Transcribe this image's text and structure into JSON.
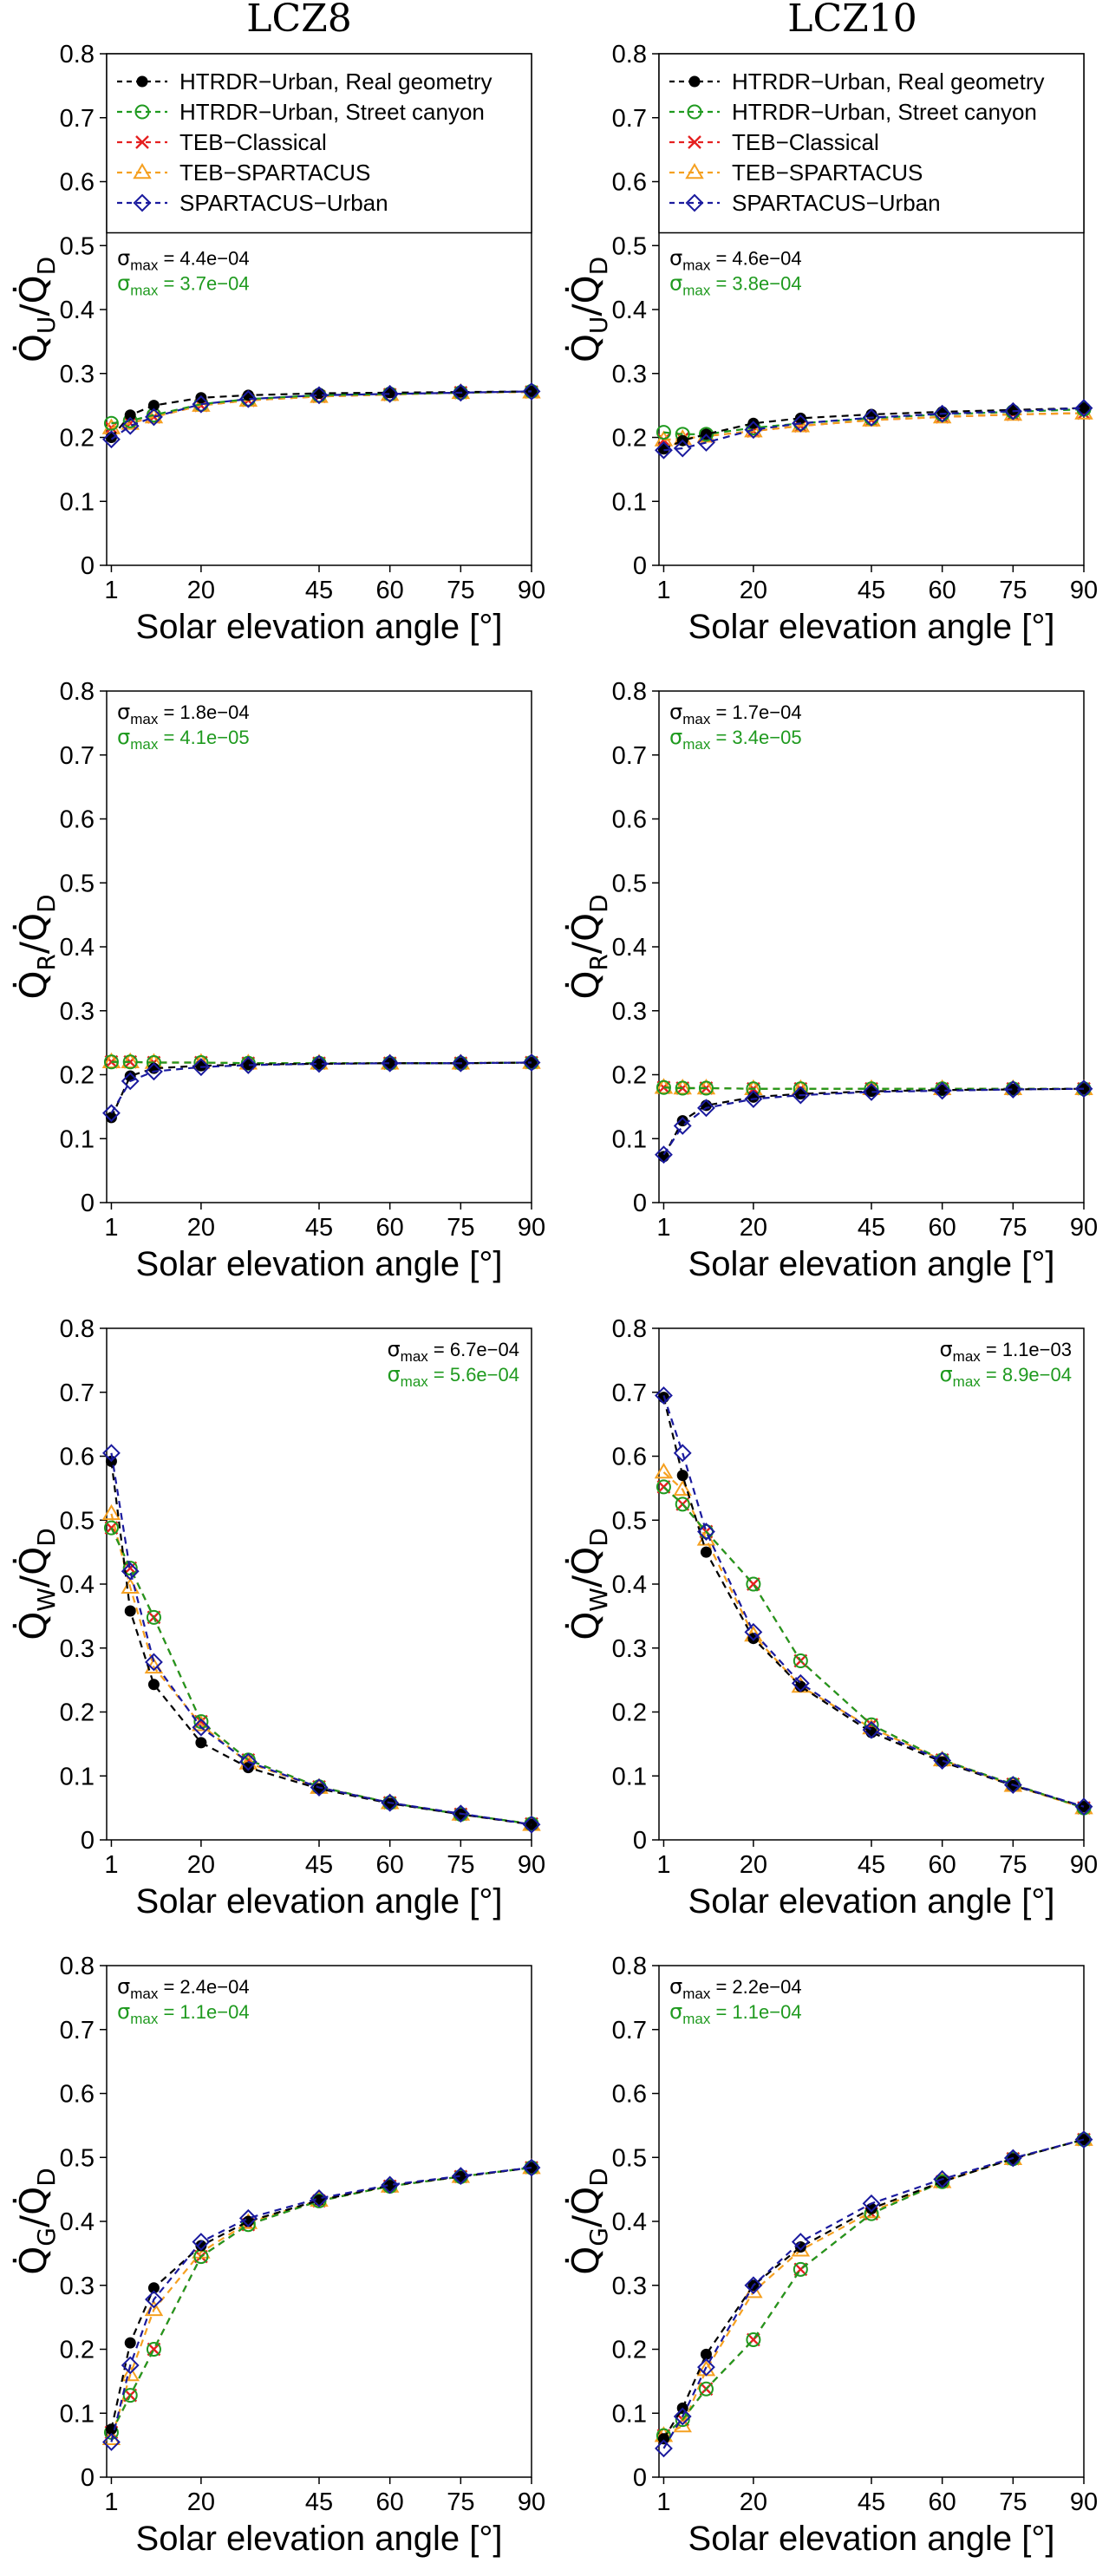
{
  "columns": [
    "LCZ8",
    "LCZ10"
  ],
  "colors": {
    "HTRDR-Urban, Real geometry": "#000000",
    "HTRDR-Urban, Street canyon": "#1f9a1f",
    "TEB-Classical": "#e52020",
    "TEB-SPARTACUS": "#f5a020",
    "SPARTACUS-Urban": "#1a1a9e",
    "sigma_black": "#000000",
    "sigma_green": "#1f9a1f"
  },
  "legend": {
    "entries": [
      {
        "label": "HTRDR−Urban, Real geometry",
        "marker": "dot",
        "color": "#000000"
      },
      {
        "label": "HTRDR−Urban, Street canyon",
        "marker": "circle",
        "color": "#1f9a1f"
      },
      {
        "label": "TEB−Classical",
        "marker": "cross",
        "color": "#e52020"
      },
      {
        "label": "TEB−SPARTACUS",
        "marker": "triangle",
        "color": "#f5a020"
      },
      {
        "label": "SPARTACUS−Urban",
        "marker": "diamond",
        "color": "#1a1a9e"
      }
    ]
  },
  "chart_data": [
    {
      "type": "line",
      "column": "LCZ8",
      "row": 0,
      "title": "LCZ8",
      "xlabel": "Solar elevation angle [°]",
      "ylabel_main": "Q",
      "ylabel_sub_num": "U",
      "ylabel_sub_den": "D",
      "xlim": [
        0,
        90
      ],
      "ylim": [
        0,
        0.8
      ],
      "xticks": [
        1,
        20,
        45,
        60,
        75,
        90
      ],
      "yticks": [
        0,
        0.1,
        0.2,
        0.3,
        0.4,
        0.5,
        0.6,
        0.7,
        0.8
      ],
      "sigma": [
        {
          "prefix": "σ",
          "sub": "max",
          "text": " = 4.4e−04",
          "color": "#000000"
        },
        {
          "prefix": "σ",
          "sub": "max",
          "text": " = 3.7e−04",
          "color": "#1f9a1f"
        }
      ],
      "sigma_position": "top-left",
      "x": [
        1,
        5,
        10,
        20,
        30,
        45,
        60,
        75,
        90
      ],
      "series": [
        {
          "name": "HTRDR-Urban, Real geometry",
          "values": [
            0.2,
            0.235,
            0.25,
            0.262,
            0.266,
            0.269,
            0.27,
            0.271,
            0.272
          ]
        },
        {
          "name": "HTRDR-Urban, Street canyon",
          "values": [
            0.222,
            0.226,
            0.235,
            0.252,
            0.26,
            0.266,
            0.268,
            0.27,
            0.272
          ]
        },
        {
          "name": "TEB-Classical",
          "values": [
            0.215,
            0.222,
            0.232,
            0.25,
            0.258,
            0.264,
            0.267,
            0.27,
            0.271
          ]
        },
        {
          "name": "TEB-SPARTACUS",
          "values": [
            0.215,
            0.222,
            0.232,
            0.25,
            0.258,
            0.264,
            0.267,
            0.27,
            0.271
          ]
        },
        {
          "name": "SPARTACUS-Urban",
          "values": [
            0.197,
            0.218,
            0.232,
            0.252,
            0.26,
            0.266,
            0.268,
            0.27,
            0.272
          ]
        }
      ]
    },
    {
      "type": "line",
      "column": "LCZ10",
      "row": 0,
      "title": "LCZ10",
      "xlabel": "Solar elevation angle [°]",
      "ylabel_main": "Q",
      "ylabel_sub_num": "U",
      "ylabel_sub_den": "D",
      "xlim": [
        0,
        90
      ],
      "ylim": [
        0,
        0.8
      ],
      "xticks": [
        1,
        20,
        45,
        60,
        75,
        90
      ],
      "yticks": [
        0,
        0.1,
        0.2,
        0.3,
        0.4,
        0.5,
        0.6,
        0.7,
        0.8
      ],
      "sigma": [
        {
          "prefix": "σ",
          "sub": "max",
          "text": " = 4.6e−04",
          "color": "#000000"
        },
        {
          "prefix": "σ",
          "sub": "max",
          "text": " = 3.8e−04",
          "color": "#1f9a1f"
        }
      ],
      "sigma_position": "top-left",
      "x": [
        1,
        5,
        10,
        20,
        30,
        45,
        60,
        75,
        90
      ],
      "series": [
        {
          "name": "HTRDR-Urban, Real geometry",
          "values": [
            0.182,
            0.195,
            0.205,
            0.222,
            0.23,
            0.236,
            0.24,
            0.243,
            0.246
          ]
        },
        {
          "name": "HTRDR-Urban, Street canyon",
          "values": [
            0.208,
            0.205,
            0.205,
            0.215,
            0.222,
            0.23,
            0.236,
            0.24,
            0.244
          ]
        },
        {
          "name": "TEB-Classical",
          "values": [
            0.196,
            0.198,
            0.202,
            0.21,
            0.218,
            0.227,
            0.232,
            0.236,
            0.238
          ]
        },
        {
          "name": "TEB-SPARTACUS",
          "values": [
            0.196,
            0.198,
            0.202,
            0.21,
            0.218,
            0.227,
            0.232,
            0.236,
            0.238
          ]
        },
        {
          "name": "SPARTACUS-Urban",
          "values": [
            0.18,
            0.183,
            0.192,
            0.212,
            0.222,
            0.231,
            0.237,
            0.241,
            0.246
          ]
        }
      ]
    },
    {
      "type": "line",
      "column": "LCZ8",
      "row": 1,
      "xlabel": "Solar elevation angle [°]",
      "ylabel_main": "Q",
      "ylabel_sub_num": "R",
      "ylabel_sub_den": "D",
      "xlim": [
        0,
        90
      ],
      "ylim": [
        0,
        0.8
      ],
      "xticks": [
        1,
        20,
        45,
        60,
        75,
        90
      ],
      "yticks": [
        0,
        0.1,
        0.2,
        0.3,
        0.4,
        0.5,
        0.6,
        0.7,
        0.8
      ],
      "sigma": [
        {
          "prefix": "σ",
          "sub": "max",
          "text": " = 1.8e−04",
          "color": "#000000"
        },
        {
          "prefix": "σ",
          "sub": "max",
          "text": " = 4.1e−05",
          "color": "#1f9a1f"
        }
      ],
      "sigma_position": "top-left",
      "x": [
        1,
        5,
        10,
        20,
        30,
        45,
        60,
        75,
        90
      ],
      "series": [
        {
          "name": "HTRDR-Urban, Real geometry",
          "values": [
            0.133,
            0.198,
            0.21,
            0.214,
            0.216,
            0.217,
            0.218,
            0.218,
            0.219
          ]
        },
        {
          "name": "HTRDR-Urban, Street canyon",
          "values": [
            0.22,
            0.22,
            0.219,
            0.219,
            0.218,
            0.218,
            0.218,
            0.218,
            0.219
          ]
        },
        {
          "name": "TEB-Classical",
          "values": [
            0.22,
            0.22,
            0.219,
            0.219,
            0.218,
            0.218,
            0.218,
            0.218,
            0.219
          ]
        },
        {
          "name": "TEB-SPARTACUS",
          "values": [
            0.22,
            0.22,
            0.219,
            0.219,
            0.218,
            0.218,
            0.218,
            0.218,
            0.219
          ]
        },
        {
          "name": "SPARTACUS-Urban",
          "values": [
            0.14,
            0.19,
            0.205,
            0.212,
            0.215,
            0.217,
            0.218,
            0.218,
            0.219
          ]
        }
      ]
    },
    {
      "type": "line",
      "column": "LCZ10",
      "row": 1,
      "xlabel": "Solar elevation angle [°]",
      "ylabel_main": "Q",
      "ylabel_sub_num": "R",
      "ylabel_sub_den": "D",
      "xlim": [
        0,
        90
      ],
      "ylim": [
        0,
        0.8
      ],
      "xticks": [
        1,
        20,
        45,
        60,
        75,
        90
      ],
      "yticks": [
        0,
        0.1,
        0.2,
        0.3,
        0.4,
        0.5,
        0.6,
        0.7,
        0.8
      ],
      "sigma": [
        {
          "prefix": "σ",
          "sub": "max",
          "text": " = 1.7e−04",
          "color": "#000000"
        },
        {
          "prefix": "σ",
          "sub": "max",
          "text": " = 3.4e−05",
          "color": "#1f9a1f"
        }
      ],
      "sigma_position": "top-left",
      "x": [
        1,
        5,
        10,
        20,
        30,
        45,
        60,
        75,
        90
      ],
      "series": [
        {
          "name": "HTRDR-Urban, Real geometry",
          "values": [
            0.072,
            0.128,
            0.152,
            0.165,
            0.17,
            0.174,
            0.176,
            0.177,
            0.178
          ]
        },
        {
          "name": "HTRDR-Urban, Street canyon",
          "values": [
            0.18,
            0.179,
            0.179,
            0.178,
            0.178,
            0.178,
            0.178,
            0.178,
            0.178
          ]
        },
        {
          "name": "TEB-Classical",
          "values": [
            0.18,
            0.179,
            0.179,
            0.178,
            0.178,
            0.178,
            0.178,
            0.178,
            0.178
          ]
        },
        {
          "name": "TEB-SPARTACUS",
          "values": [
            0.18,
            0.179,
            0.179,
            0.178,
            0.178,
            0.178,
            0.178,
            0.178,
            0.178
          ]
        },
        {
          "name": "SPARTACUS-Urban",
          "values": [
            0.075,
            0.12,
            0.148,
            0.162,
            0.168,
            0.173,
            0.175,
            0.177,
            0.178
          ]
        }
      ]
    },
    {
      "type": "line",
      "column": "LCZ8",
      "row": 2,
      "xlabel": "Solar elevation angle [°]",
      "ylabel_main": "Q",
      "ylabel_sub_num": "W",
      "ylabel_sub_den": "D",
      "xlim": [
        0,
        90
      ],
      "ylim": [
        0,
        0.8
      ],
      "xticks": [
        1,
        20,
        45,
        60,
        75,
        90
      ],
      "yticks": [
        0,
        0.1,
        0.2,
        0.3,
        0.4,
        0.5,
        0.6,
        0.7,
        0.8
      ],
      "sigma": [
        {
          "prefix": "σ",
          "sub": "max",
          "text": " = 6.7e−04",
          "color": "#000000"
        },
        {
          "prefix": "σ",
          "sub": "max",
          "text": " = 5.6e−04",
          "color": "#1f9a1f"
        }
      ],
      "sigma_position": "top-right",
      "x": [
        1,
        5,
        10,
        20,
        30,
        45,
        60,
        75,
        90
      ],
      "series": [
        {
          "name": "HTRDR-Urban, Real geometry",
          "values": [
            0.592,
            0.358,
            0.243,
            0.152,
            0.113,
            0.08,
            0.057,
            0.04,
            0.024
          ]
        },
        {
          "name": "HTRDR-Urban, Street canyon",
          "values": [
            0.488,
            0.425,
            0.348,
            0.185,
            0.125,
            0.083,
            0.058,
            0.04,
            0.025
          ]
        },
        {
          "name": "TEB-Classical",
          "values": [
            0.488,
            0.425,
            0.348,
            0.185,
            0.125,
            0.083,
            0.058,
            0.04,
            0.025
          ]
        },
        {
          "name": "TEB-SPARTACUS",
          "values": [
            0.51,
            0.395,
            0.27,
            0.18,
            0.12,
            0.082,
            0.058,
            0.04,
            0.024
          ]
        },
        {
          "name": "SPARTACUS-Urban",
          "values": [
            0.605,
            0.42,
            0.278,
            0.176,
            0.122,
            0.082,
            0.058,
            0.041,
            0.024
          ]
        }
      ]
    },
    {
      "type": "line",
      "column": "LCZ10",
      "row": 2,
      "xlabel": "Solar elevation angle [°]",
      "ylabel_main": "Q",
      "ylabel_sub_num": "W",
      "ylabel_sub_den": "D",
      "xlim": [
        0,
        90
      ],
      "ylim": [
        0,
        0.8
      ],
      "xticks": [
        1,
        20,
        45,
        60,
        75,
        90
      ],
      "yticks": [
        0,
        0.1,
        0.2,
        0.3,
        0.4,
        0.5,
        0.6,
        0.7,
        0.8
      ],
      "sigma": [
        {
          "prefix": "σ",
          "sub": "max",
          "text": " = 1.1e−03",
          "color": "#000000"
        },
        {
          "prefix": "σ",
          "sub": "max",
          "text": " = 8.9e−04",
          "color": "#1f9a1f"
        }
      ],
      "sigma_position": "top-right",
      "x": [
        1,
        5,
        10,
        20,
        30,
        45,
        60,
        75,
        90
      ],
      "series": [
        {
          "name": "HTRDR-Urban, Real geometry",
          "values": [
            0.692,
            0.57,
            0.45,
            0.315,
            0.24,
            0.168,
            0.122,
            0.085,
            0.052
          ]
        },
        {
          "name": "HTRDR-Urban, Street canyon",
          "values": [
            0.552,
            0.525,
            0.482,
            0.4,
            0.28,
            0.18,
            0.125,
            0.087,
            0.05
          ]
        },
        {
          "name": "TEB-Classical",
          "values": [
            0.552,
            0.525,
            0.482,
            0.4,
            0.28,
            0.18,
            0.125,
            0.087,
            0.05
          ]
        },
        {
          "name": "TEB-SPARTACUS",
          "values": [
            0.575,
            0.548,
            0.47,
            0.32,
            0.24,
            0.175,
            0.125,
            0.085,
            0.05
          ]
        },
        {
          "name": "SPARTACUS-Urban",
          "values": [
            0.695,
            0.605,
            0.482,
            0.325,
            0.245,
            0.172,
            0.124,
            0.086,
            0.052
          ]
        }
      ]
    },
    {
      "type": "line",
      "column": "LCZ8",
      "row": 3,
      "xlabel": "Solar elevation angle [°]",
      "ylabel_main": "Q",
      "ylabel_sub_num": "G",
      "ylabel_sub_den": "D",
      "xlim": [
        0,
        90
      ],
      "ylim": [
        0,
        0.8
      ],
      "xticks": [
        1,
        20,
        45,
        60,
        75,
        90
      ],
      "yticks": [
        0,
        0.1,
        0.2,
        0.3,
        0.4,
        0.5,
        0.6,
        0.7,
        0.8
      ],
      "sigma": [
        {
          "prefix": "σ",
          "sub": "max",
          "text": " = 2.4e−04",
          "color": "#000000"
        },
        {
          "prefix": "σ",
          "sub": "max",
          "text": " = 1.1e−04",
          "color": "#1f9a1f"
        }
      ],
      "sigma_position": "top-left",
      "x": [
        1,
        5,
        10,
        20,
        30,
        45,
        60,
        75,
        90
      ],
      "series": [
        {
          "name": "HTRDR-Urban, Real geometry",
          "values": [
            0.075,
            0.21,
            0.296,
            0.362,
            0.4,
            0.433,
            0.456,
            0.47,
            0.484
          ]
        },
        {
          "name": "HTRDR-Urban, Street canyon",
          "values": [
            0.07,
            0.128,
            0.2,
            0.345,
            0.395,
            0.432,
            0.455,
            0.47,
            0.484
          ]
        },
        {
          "name": "TEB-Classical",
          "values": [
            0.07,
            0.128,
            0.2,
            0.345,
            0.395,
            0.432,
            0.455,
            0.47,
            0.484
          ]
        },
        {
          "name": "TEB-SPARTACUS",
          "values": [
            0.06,
            0.16,
            0.262,
            0.352,
            0.398,
            0.433,
            0.455,
            0.47,
            0.484
          ]
        },
        {
          "name": "SPARTACUS-Urban",
          "values": [
            0.055,
            0.175,
            0.278,
            0.368,
            0.405,
            0.436,
            0.457,
            0.471,
            0.484
          ]
        }
      ]
    },
    {
      "type": "line",
      "column": "LCZ10",
      "row": 3,
      "xlabel": "Solar elevation angle [°]",
      "ylabel_main": "Q",
      "ylabel_sub_num": "G",
      "ylabel_sub_den": "D",
      "xlim": [
        0,
        90
      ],
      "ylim": [
        0,
        0.8
      ],
      "xticks": [
        1,
        20,
        45,
        60,
        75,
        90
      ],
      "yticks": [
        0,
        0.1,
        0.2,
        0.3,
        0.4,
        0.5,
        0.6,
        0.7,
        0.8
      ],
      "sigma": [
        {
          "prefix": "σ",
          "sub": "max",
          "text": " = 2.2e−04",
          "color": "#000000"
        },
        {
          "prefix": "σ",
          "sub": "max",
          "text": " = 1.1e−04",
          "color": "#1f9a1f"
        }
      ],
      "sigma_position": "top-left",
      "x": [
        1,
        5,
        10,
        20,
        30,
        45,
        60,
        75,
        90
      ],
      "series": [
        {
          "name": "HTRDR-Urban, Real geometry",
          "values": [
            0.06,
            0.108,
            0.192,
            0.3,
            0.36,
            0.42,
            0.462,
            0.498,
            0.528
          ]
        },
        {
          "name": "HTRDR-Urban, Street canyon",
          "values": [
            0.065,
            0.09,
            0.138,
            0.215,
            0.325,
            0.412,
            0.462,
            0.498,
            0.528
          ]
        },
        {
          "name": "TEB-Classical",
          "values": [
            0.065,
            0.09,
            0.138,
            0.215,
            0.325,
            0.412,
            0.462,
            0.498,
            0.528
          ]
        },
        {
          "name": "TEB-SPARTACUS",
          "values": [
            0.065,
            0.08,
            0.168,
            0.29,
            0.355,
            0.415,
            0.462,
            0.498,
            0.528
          ]
        },
        {
          "name": "SPARTACUS-Urban",
          "values": [
            0.045,
            0.095,
            0.172,
            0.3,
            0.368,
            0.428,
            0.466,
            0.499,
            0.528
          ]
        }
      ]
    }
  ]
}
